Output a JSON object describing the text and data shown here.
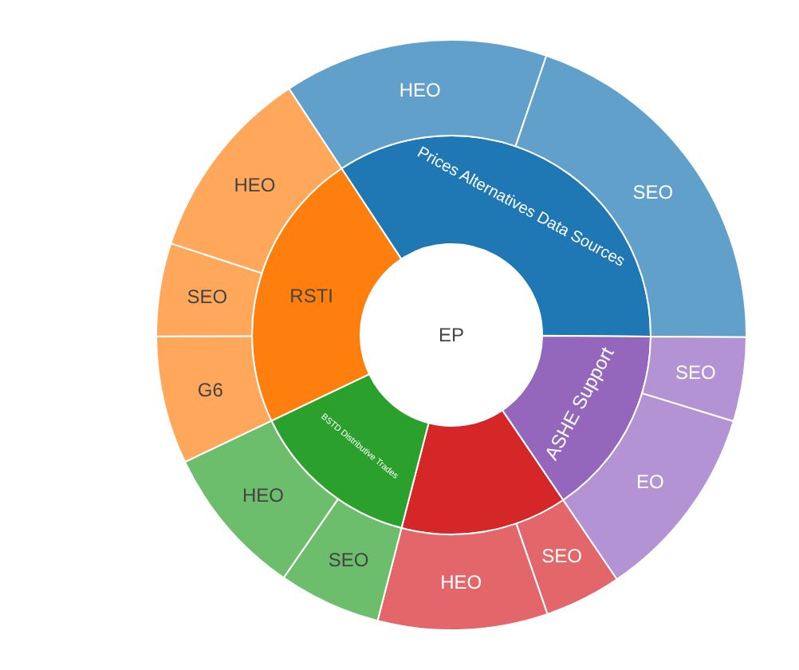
{
  "chart_data": [
    {
      "type": "donut",
      "title": "EP",
      "categories": [
        "Prices Alternatives Data Sources",
        "ASHE Support",
        null,
        "BSTD Distributive Trades",
        "RSTI"
      ],
      "values": [
        34.4,
        15.4,
        13.5,
        13.9,
        22.8
      ],
      "colors": [
        "#1f77b4",
        "#9467bd",
        "#d62728",
        "#2ca02c",
        "#ff7f0e"
      ]
    },
    {
      "type": "donut",
      "categories": [
        "HEO",
        "SEO",
        "SEO",
        "EO",
        "SEO",
        "HEO",
        "SEO",
        "HEO",
        "G6",
        "SEO",
        "HEO"
      ],
      "values": [
        14.5,
        19.9,
        4.6,
        10.8,
        4.2,
        9.3,
        5.6,
        8.3,
        7.0,
        5.1,
        10.7
      ],
      "colors": [
        "#62a0cc",
        "#62a0cc",
        "#b393d3",
        "#b393d3",
        "#e3676a",
        "#e3676a",
        "#6cbd6c",
        "#6cbd6c",
        "#ffa75a",
        "#ffa75a",
        "#ffa75a"
      ]
    }
  ]
}
